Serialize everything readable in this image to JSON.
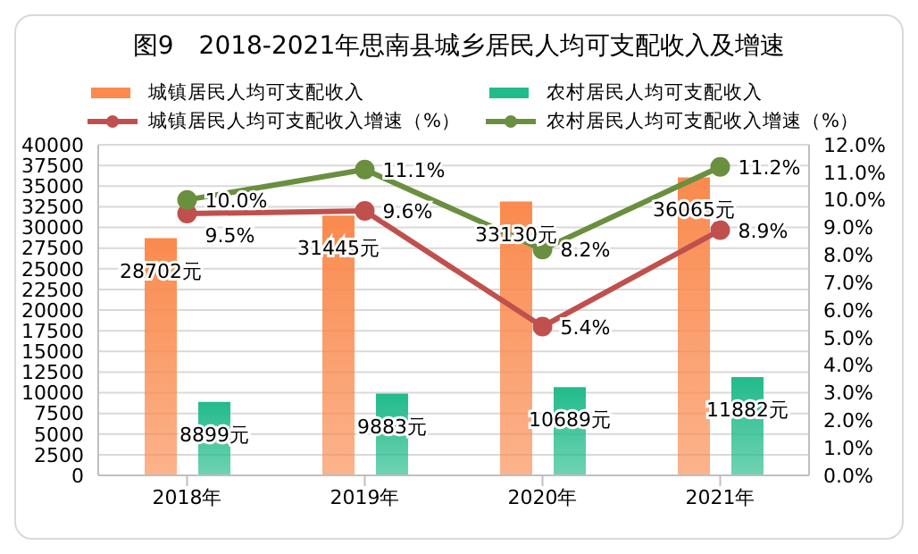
{
  "chart_data": {
    "type": "bar",
    "title": "图9　2018-2021年思南县城乡居民人均可支配收入及增速",
    "categories": [
      "2018年",
      "2019年",
      "2020年",
      "2021年"
    ],
    "series": [
      {
        "name": "城镇居民人均可支配收入",
        "color": "#fa8a4e",
        "values": [
          28702,
          31445,
          33130,
          36065
        ],
        "value_labels": [
          "28702元",
          "31445元",
          "33130元",
          "36065元"
        ]
      },
      {
        "name": "农村居民人均可支配收入",
        "color": "#22bb8b",
        "values": [
          8899,
          9883,
          10689,
          11882
        ],
        "value_labels": [
          "8899元",
          "9883元",
          "10689元",
          "11882元"
        ]
      },
      {
        "name": "城镇居民人均可支配收入增速（%）",
        "type": "line",
        "axis": "y2",
        "color": "#c0504d",
        "values": [
          9.5,
          9.6,
          5.4,
          8.9
        ],
        "value_labels": [
          "9.5%",
          "9.6%",
          "5.4%",
          "8.9%"
        ]
      },
      {
        "name": "农村居民人均可支配收入增速（%）",
        "type": "line",
        "axis": "y2",
        "color": "#6a8f3f",
        "values": [
          10.0,
          11.1,
          8.2,
          11.2
        ],
        "value_labels": [
          "10.0%",
          "11.1%",
          "8.2%",
          "11.2%"
        ]
      }
    ],
    "ylim": [
      0,
      40000
    ],
    "yticks": [
      0,
      2500,
      5000,
      7500,
      10000,
      12500,
      15000,
      17500,
      20000,
      22500,
      25000,
      27500,
      30000,
      32500,
      35000,
      37500,
      40000
    ],
    "y2lim": [
      0,
      12
    ],
    "y2ticks": [
      {
        "value": 0,
        "label": "0.0%"
      },
      {
        "value": 1,
        "label": "1.0%"
      },
      {
        "value": 2,
        "label": "2.0%"
      },
      {
        "value": 3,
        "label": "3.0%"
      },
      {
        "value": 4,
        "label": "4.0%"
      },
      {
        "value": 5,
        "label": "5.0%"
      },
      {
        "value": 6,
        "label": "6.0%"
      },
      {
        "value": 7,
        "label": "7.0%"
      },
      {
        "value": 8,
        "label": "8.0%"
      },
      {
        "value": 9,
        "label": "9.0%"
      },
      {
        "value": 10,
        "label": "10.0%"
      },
      {
        "value": 11,
        "label": "11.0%"
      },
      {
        "value": 12,
        "label": "12.0%"
      }
    ],
    "grid": "y",
    "legend": "top",
    "marker": "circle",
    "line_style": "solid"
  }
}
